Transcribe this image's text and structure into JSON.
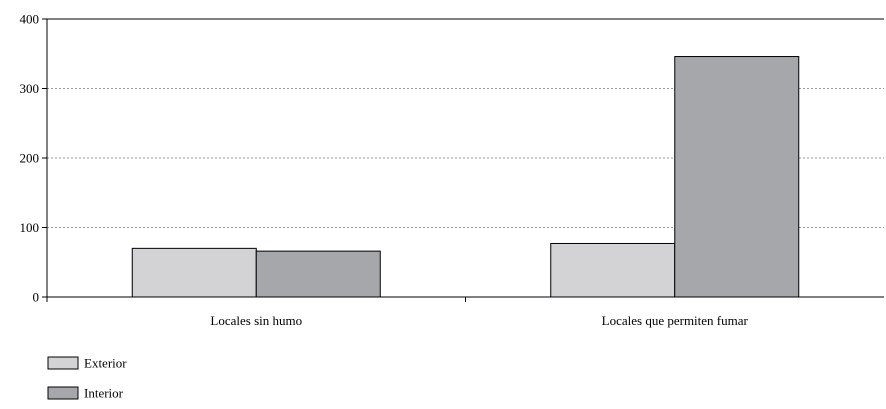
{
  "chart_data": {
    "type": "bar",
    "categories": [
      "Locales sin humo",
      "Locales que permiten fumar"
    ],
    "series": [
      {
        "name": "Exterior",
        "values": [
          70,
          77
        ],
        "color": "#d3d3d5"
      },
      {
        "name": "Interior",
        "values": [
          66,
          346
        ],
        "color": "#a6a7ab"
      }
    ],
    "ylim": [
      0,
      400
    ],
    "yticks": [
      0,
      100,
      200,
      300,
      400
    ],
    "grid": true,
    "grid_style": "dotted",
    "legend_position": "bottom-left",
    "bar_outline_color": "#000000",
    "axis_color": "#000000"
  }
}
